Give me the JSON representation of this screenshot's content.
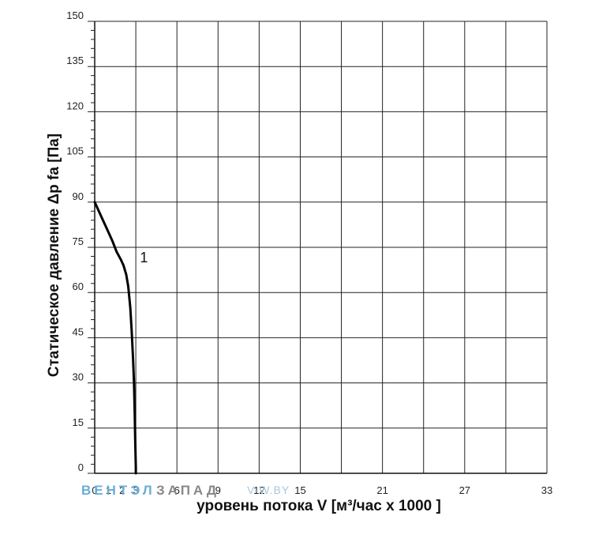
{
  "chart_data": {
    "type": "line",
    "title": "",
    "xlabel": "уровень потока  V [м³/час х 1000 ]",
    "ylabel": "Статическое давление  Δp fa [Па]",
    "xlim": [
      0,
      33
    ],
    "ylim": [
      0,
      150
    ],
    "x_major_ticks": [
      0,
      3,
      6,
      9,
      12,
      15,
      18,
      21,
      24,
      27,
      30,
      33
    ],
    "x_tick_labels": [
      "0",
      "1",
      "2",
      "3",
      "6",
      "9",
      "12",
      "15",
      "21",
      "27",
      "33"
    ],
    "x_tick_label_positions_data": [
      0,
      1,
      2,
      3,
      6,
      9,
      12,
      15,
      21,
      27,
      33
    ],
    "y_major_ticks": [
      0,
      15,
      30,
      45,
      60,
      75,
      90,
      105,
      120,
      135,
      150
    ],
    "y_tick_labels": [
      "0",
      "15",
      "30",
      "45",
      "60",
      "75",
      "90",
      "105",
      "120",
      "135",
      "150"
    ],
    "grid": true,
    "series": [
      {
        "name": "1",
        "x": [
          0,
          0.5,
          1.0,
          1.3,
          1.6,
          1.9,
          2.1,
          2.3,
          2.45,
          2.6,
          2.7,
          2.8,
          2.87,
          2.92,
          2.96,
          3.0,
          3.0
        ],
        "y": [
          90,
          85,
          80,
          77,
          73.5,
          71,
          69,
          66,
          62,
          55,
          47,
          38,
          30,
          20,
          10,
          2,
          0
        ]
      }
    ],
    "annotations": [
      {
        "text": "1",
        "x": 2.5,
        "y": 69
      }
    ]
  },
  "watermark": {
    "part1": "ВЕНТЭЛ",
    "part2": "ЗАПАД",
    "part3": "V-W.BY",
    "color1": "#6aaed6",
    "color2": "#888888",
    "color3": "#a8c8de"
  }
}
